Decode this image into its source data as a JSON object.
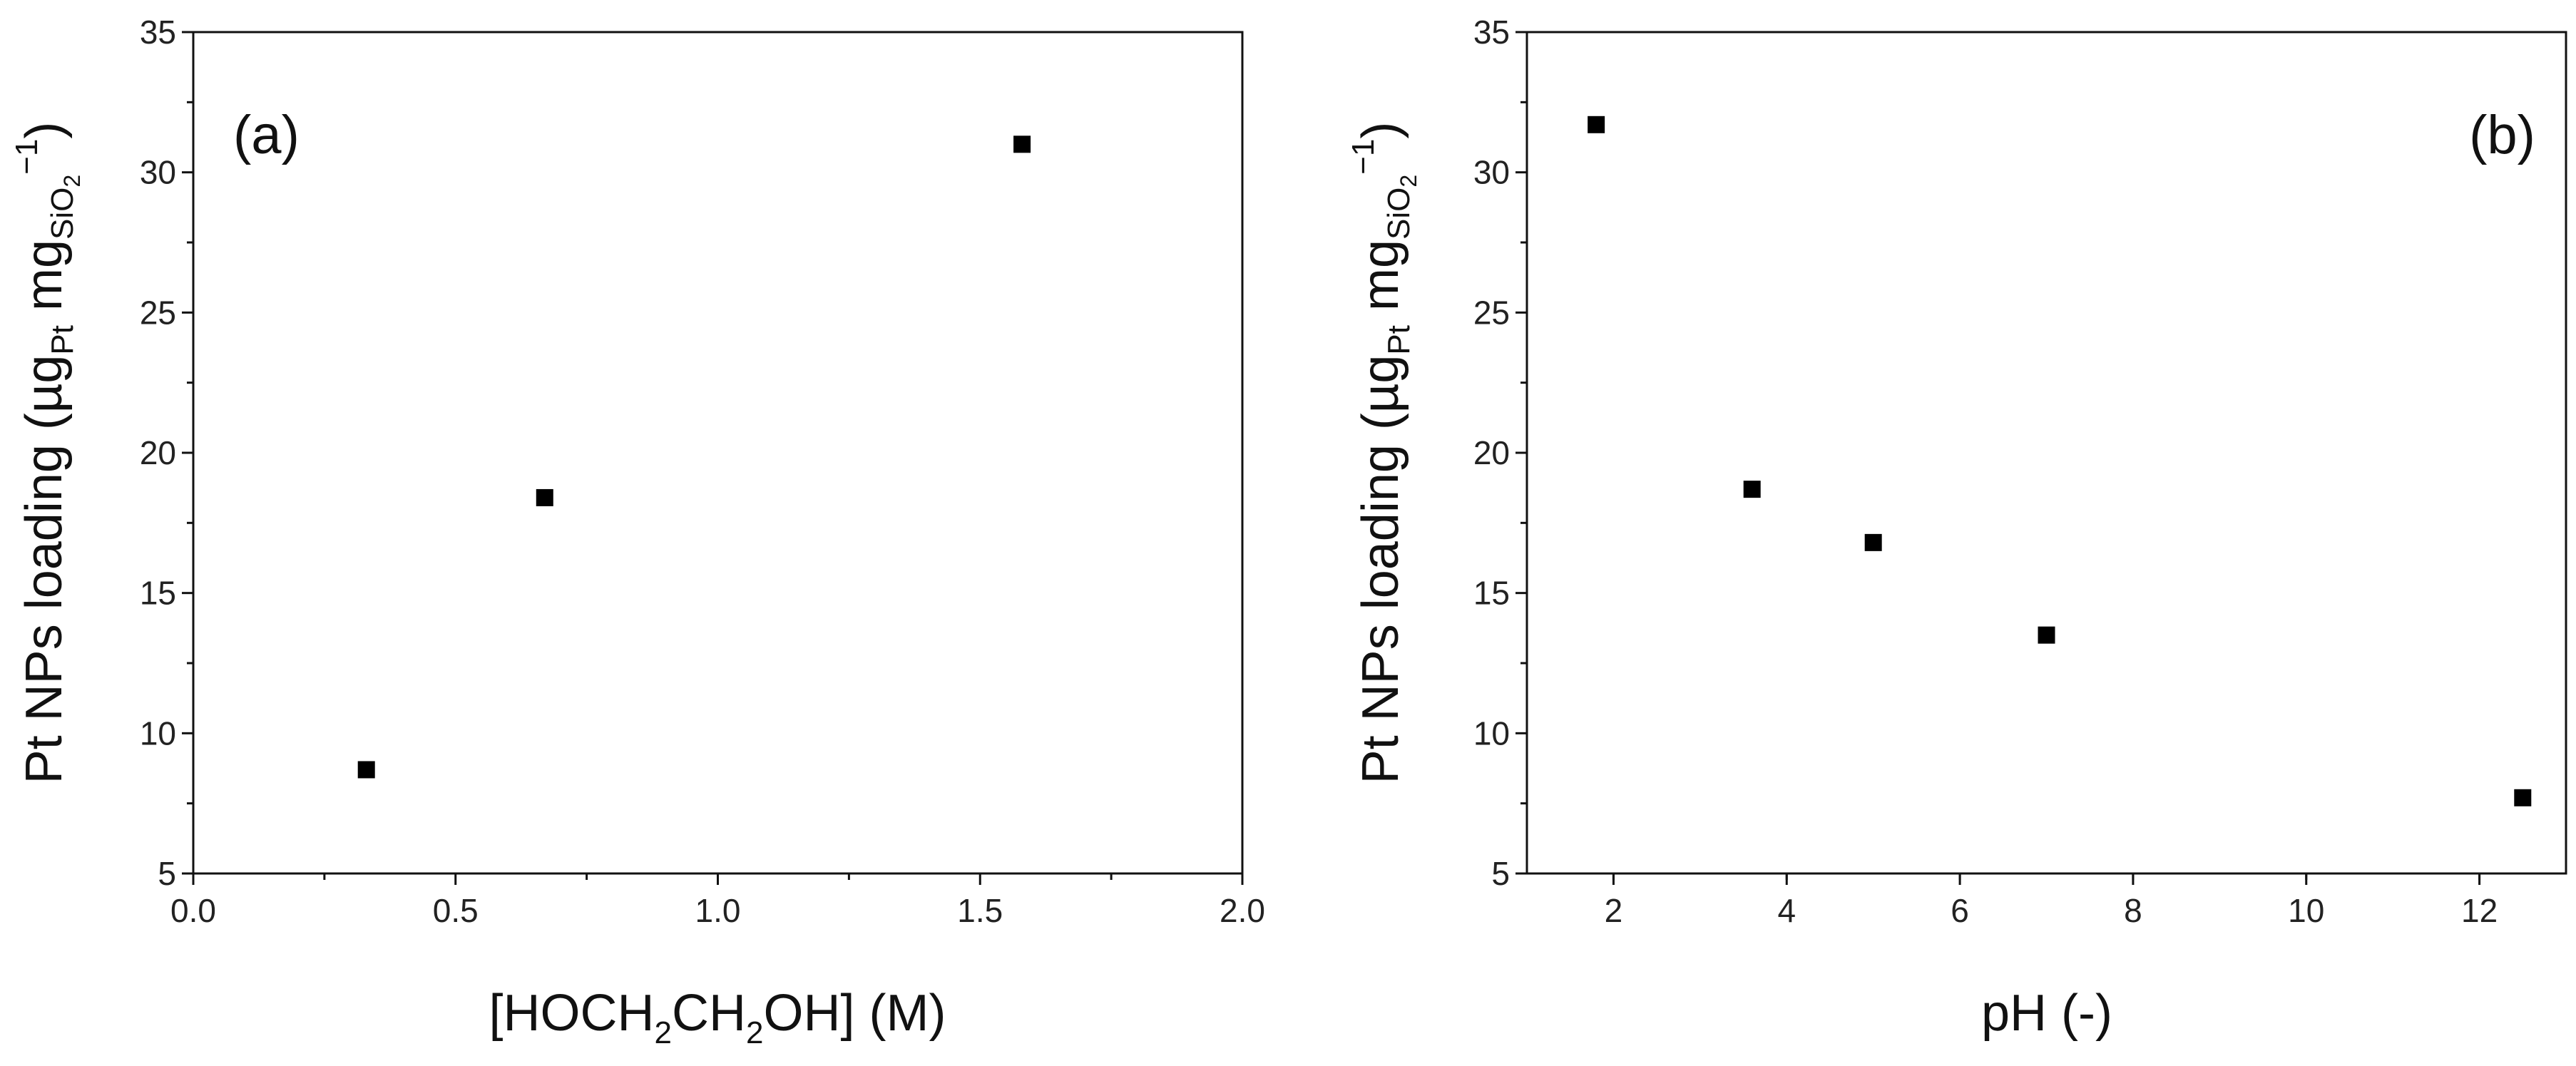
{
  "chart_data": [
    {
      "type": "scatter",
      "panel_label": "(a)",
      "x": [
        0.33,
        0.67,
        1.58
      ],
      "y": [
        8.7,
        18.4,
        31.0
      ],
      "xlim": [
        0.0,
        2.0
      ],
      "ylim": [
        5,
        35
      ],
      "xticks": [
        "0.0",
        "0.5",
        "1.0",
        "1.5",
        "2.0"
      ],
      "yticks": [
        "5",
        "10",
        "15",
        "20",
        "25",
        "30",
        "35"
      ],
      "xlabel": {
        "parts": [
          "[HOCH",
          "2",
          "CH",
          "2",
          "OH] (M)"
        ]
      },
      "ylabel": {
        "parts": [
          "Pt NPs loading (µg",
          "Pt",
          " mg",
          "SiO",
          "2",
          "−1",
          ")"
        ]
      },
      "legend": "none",
      "grid": false
    },
    {
      "type": "scatter",
      "panel_label": "(b)",
      "x": [
        1.8,
        3.6,
        5.0,
        7.0,
        12.5
      ],
      "y": [
        31.7,
        18.7,
        16.8,
        13.5,
        7.7
      ],
      "xlim": [
        1,
        13
      ],
      "ylim": [
        5,
        35
      ],
      "xticks": [
        "2",
        "4",
        "6",
        "8",
        "10",
        "12"
      ],
      "yticks": [
        "5",
        "10",
        "15",
        "20",
        "25",
        "30",
        "35"
      ],
      "xlabel": {
        "parts": [
          "pH (-)"
        ]
      },
      "ylabel": {
        "parts": [
          "Pt NPs loading (µg",
          "Pt",
          " mg",
          "SiO",
          "2",
          "−1",
          ")"
        ]
      },
      "legend": "none",
      "grid": false
    }
  ]
}
